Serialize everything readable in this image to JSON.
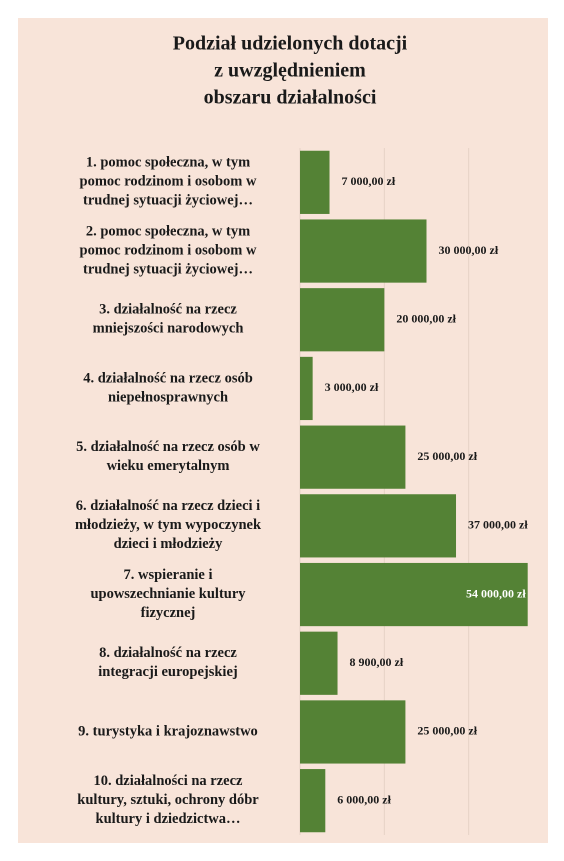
{
  "chart_data": {
    "type": "bar",
    "orientation": "horizontal",
    "title": [
      "Podział udzielonych dotacji",
      "z uwzględnieniem",
      "obszaru działalności"
    ],
    "categories": [
      [
        "1. pomoc społeczna, w tym",
        "pomoc rodzinom i osobom w",
        "trudnej sytuacji życiowej…"
      ],
      [
        "2. pomoc społeczna, w tym",
        "pomoc rodzinom i osobom w",
        "trudnej sytuacji życiowej…"
      ],
      [
        "3. działalność na rzecz",
        "mniejszości narodowych"
      ],
      [
        "4. działalność na rzecz osób",
        "niepełnosprawnych"
      ],
      [
        "5. działalność na rzecz osób w",
        "wieku emerytalnym"
      ],
      [
        "6. działalność na rzecz dzieci i",
        "młodzieży, w tym wypoczynek",
        "dzieci i młodzieży"
      ],
      [
        "7. wspieranie i",
        "upowszechnianie kultury",
        "fizycznej"
      ],
      [
        "8. działalność na rzecz",
        "integracji europejskiej"
      ],
      [
        "9. turystyka i krajoznawstwo"
      ],
      [
        "10. działalności na rzecz",
        "kultury, sztuki, ochrony dóbr",
        "kultury i dziedzictwa…"
      ]
    ],
    "values": [
      7000,
      30000,
      20000,
      3000,
      25000,
      37000,
      54000,
      8900,
      25000,
      6000
    ],
    "value_labels": [
      "7 000,00 zł",
      "30 000,00 zł",
      "20 000,00 zł",
      "3 000,00 zł",
      "25 000,00 zł",
      "37 000,00 zł",
      "54 000,00 zł",
      "8 900,00 zł",
      "25 000,00 zł",
      "6 000,00 zł"
    ],
    "color": "#548235",
    "xlim": [
      0,
      60000
    ],
    "xticks": [
      0,
      20000,
      40000,
      60000
    ],
    "grid": true
  }
}
